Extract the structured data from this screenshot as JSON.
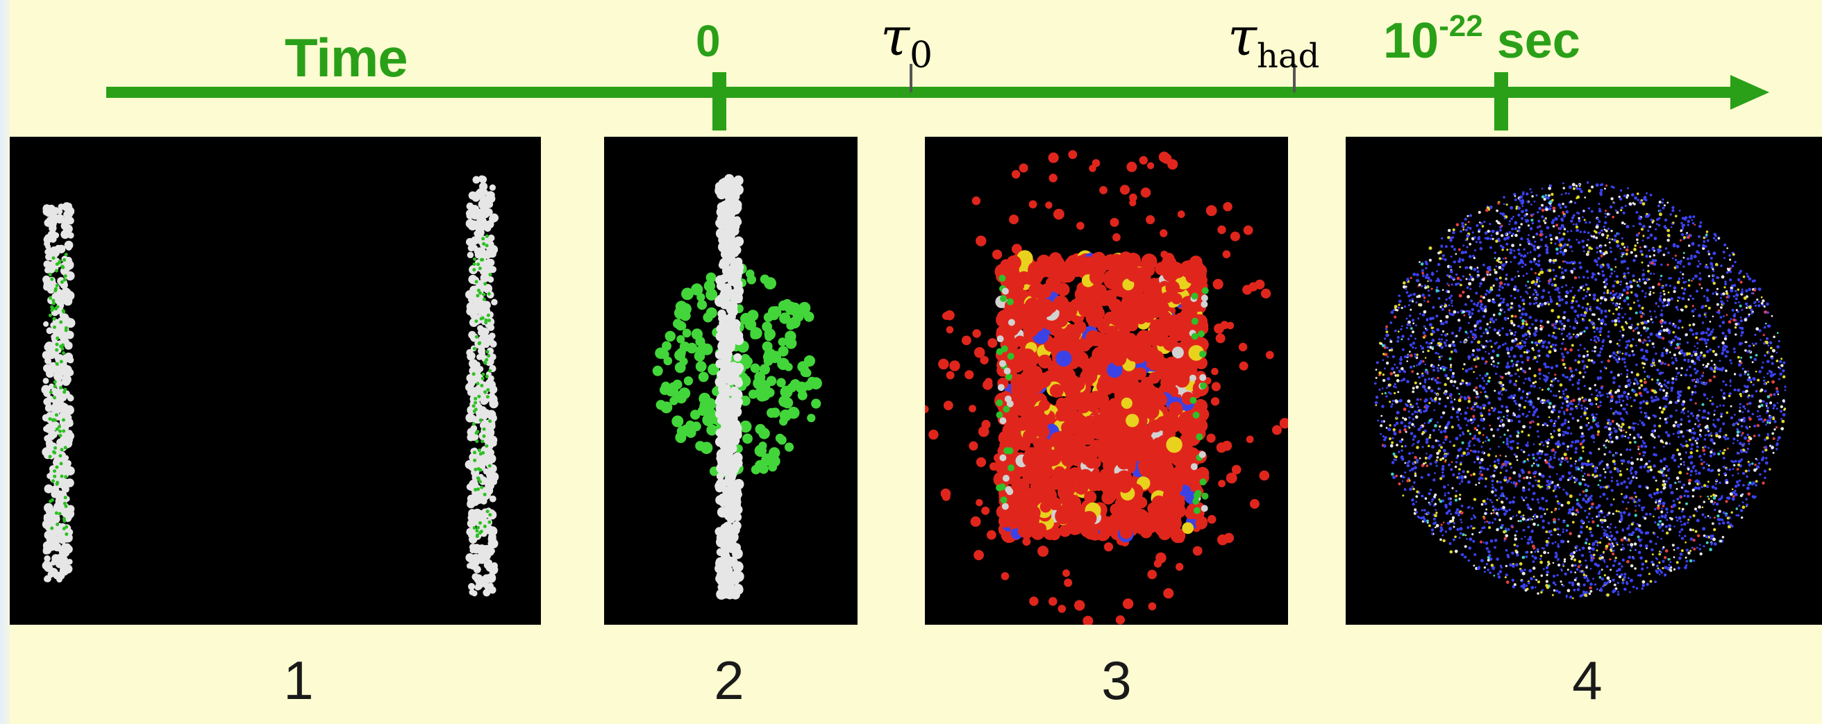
{
  "timeline": {
    "title": "Time",
    "tick_zero": "0",
    "tau_symbol": "τ",
    "tau0_sub": "0",
    "tauhad_sub": "had",
    "end_base": "10",
    "end_exp": "-22",
    "end_unit": "sec",
    "color": "#2aa019"
  },
  "panels": [
    {
      "label": "1",
      "stage": "two approaching nuclei",
      "colors": [
        "#e6e6e6",
        "#2cc021"
      ]
    },
    {
      "label": "2",
      "stage": "collision at t = 0",
      "colors": [
        "#e6e6e6",
        "#43d63a"
      ]
    },
    {
      "label": "3",
      "stage": "expanding fireball",
      "colors": [
        "#e0261c",
        "#e8d21e",
        "#3c43e6",
        "#2fc02a",
        "#d2d2d2"
      ]
    },
    {
      "label": "4",
      "stage": "hadron freeze-out",
      "colors": [
        "#3b42f0",
        "#e8e6e6",
        "#e3d92a",
        "#e04040",
        "#40d0c0"
      ]
    }
  ]
}
